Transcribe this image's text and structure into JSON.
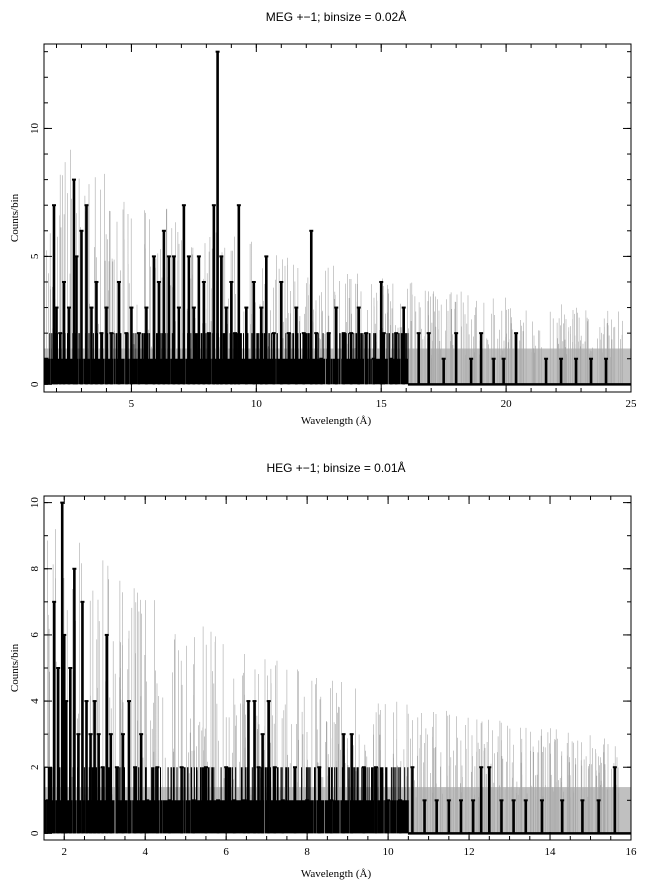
{
  "chart_data": [
    {
      "type": "line",
      "title": "MEG +−1; binsize = 0.02Å",
      "xlabel": "Wavelength (Å)",
      "ylabel": "Counts/bin",
      "xlim": [
        1.5,
        25
      ],
      "ylim": [
        -0.3,
        13.3
      ],
      "xticks": [
        5,
        10,
        15,
        20,
        25
      ],
      "xtick_labels": [
        "5",
        "10",
        "15",
        "20",
        "25"
      ],
      "yticks": [
        0,
        5,
        10
      ],
      "ytick_labels": [
        "0",
        "5",
        "10"
      ],
      "grid": false,
      "background_band": {
        "y_range": [
          0,
          1.4
        ],
        "color": "#c0c0c0"
      },
      "series": [
        {
          "color": "#000000",
          "style": "histogram-step",
          "x": [
            1.6,
            1.9,
            2.0,
            2.15,
            2.3,
            2.5,
            2.7,
            2.8,
            3.0,
            3.2,
            3.4,
            3.6,
            3.8,
            4.0,
            4.2,
            4.5,
            4.8,
            5.0,
            5.3,
            5.6,
            5.9,
            6.1,
            6.3,
            6.5,
            6.7,
            6.9,
            7.1,
            7.3,
            7.5,
            7.7,
            7.9,
            8.1,
            8.3,
            8.45,
            8.6,
            8.8,
            9.0,
            9.15,
            9.3,
            9.6,
            9.9,
            10.2,
            10.4,
            10.7,
            11.0,
            11.3,
            11.6,
            11.9,
            12.2,
            12.4,
            12.6,
            12.9,
            13.2,
            13.5,
            13.8,
            14.1,
            14.4,
            14.7,
            15.0,
            15.1,
            15.4,
            15.6,
            15.9,
            16.5,
            16.9,
            17.5,
            18.0,
            18.6,
            19.0,
            19.5,
            19.9,
            20.4,
            21.6,
            22.2,
            22.8,
            23.4,
            24.0
          ],
          "y": [
            1,
            7,
            3,
            2,
            4,
            3,
            8,
            5,
            6,
            7,
            3,
            4,
            2,
            3,
            2,
            4,
            2,
            3,
            2,
            3,
            5,
            4,
            6,
            5,
            5,
            3,
            7,
            5,
            3,
            5,
            4,
            2,
            7,
            13,
            5,
            3,
            4,
            2,
            7,
            3,
            4,
            3,
            5,
            2,
            4,
            2,
            3,
            2,
            6,
            2,
            1,
            2,
            3,
            2,
            2,
            3,
            2,
            1,
            4,
            2,
            1,
            2,
            3,
            2,
            2,
            1,
            2,
            1,
            2,
            1,
            1,
            2,
            1,
            1,
            1,
            1,
            1
          ]
        }
      ]
    },
    {
      "type": "line",
      "title": "HEG +−1; binsize = 0.01Å",
      "xlabel": "Wavelength (Å)",
      "ylabel": "Counts/bin",
      "xlim": [
        1.5,
        16
      ],
      "ylim": [
        -0.2,
        10.2
      ],
      "xticks": [
        2,
        4,
        6,
        8,
        10,
        12,
        14,
        16
      ],
      "xtick_labels": [
        "2",
        "4",
        "6",
        "8",
        "10",
        "12",
        "14",
        "16"
      ],
      "yticks": [
        0,
        2,
        4,
        6,
        8,
        10
      ],
      "ytick_labels": [
        "0",
        "2",
        "4",
        "6",
        "8",
        "10"
      ],
      "grid": false,
      "background_band": {
        "y_range": [
          0,
          1.4
        ],
        "color": "#c0c0c0"
      },
      "series": [
        {
          "color": "#000000",
          "style": "histogram-step",
          "x": [
            1.6,
            1.75,
            1.85,
            1.95,
            2.0,
            2.05,
            2.15,
            2.25,
            2.35,
            2.45,
            2.55,
            2.65,
            2.75,
            2.85,
            2.95,
            3.05,
            3.15,
            3.3,
            3.45,
            3.6,
            3.75,
            3.9,
            4.05,
            4.3,
            4.6,
            4.9,
            5.2,
            5.5,
            5.8,
            6.0,
            6.2,
            6.45,
            6.55,
            6.7,
            6.8,
            6.9,
            7.05,
            7.2,
            7.4,
            7.7,
            8.0,
            8.3,
            8.6,
            8.9,
            9.1,
            9.4,
            9.7,
            10.0,
            10.3,
            10.6,
            10.9,
            11.2,
            11.5,
            11.8,
            12.1,
            12.3,
            12.5,
            12.8,
            13.1,
            13.4,
            13.8,
            14.3,
            14.8,
            15.2,
            15.6
          ],
          "y": [
            1,
            7,
            5,
            10,
            6,
            4,
            5,
            8,
            3,
            7,
            4,
            3,
            4,
            3,
            2,
            6,
            3,
            2,
            3,
            4,
            2,
            3,
            1,
            2,
            1,
            2,
            1,
            2,
            1,
            2,
            1,
            1,
            4,
            4,
            2,
            3,
            4,
            2,
            1,
            2,
            1,
            2,
            1,
            3,
            3,
            2,
            2,
            1,
            1,
            2,
            1,
            1,
            1,
            1,
            1,
            2,
            2,
            1,
            1,
            1,
            1,
            1,
            1,
            1,
            2
          ]
        }
      ]
    }
  ]
}
